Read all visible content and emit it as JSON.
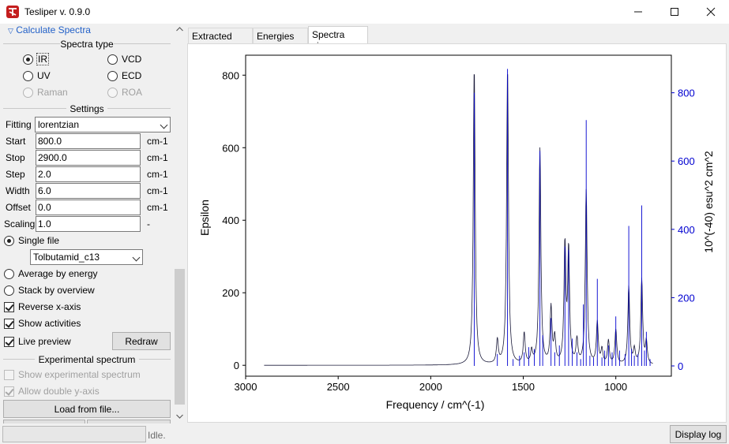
{
  "window": {
    "title": "Tesliper v. 0.9.0"
  },
  "left_panel": {
    "collapse_label": "Calculate Spectra",
    "spectra_type": {
      "title": "Spectra type",
      "options": [
        {
          "label": "IR",
          "checked": true,
          "disabled": false
        },
        {
          "label": "VCD",
          "checked": false,
          "disabled": false
        },
        {
          "label": "UV",
          "checked": false,
          "disabled": false
        },
        {
          "label": "ECD",
          "checked": false,
          "disabled": false
        },
        {
          "label": "Raman",
          "checked": false,
          "disabled": true
        },
        {
          "label": "ROA",
          "checked": false,
          "disabled": true
        }
      ]
    },
    "settings": {
      "title": "Settings",
      "fitting_label": "Fitting",
      "fitting_value": "lorentzian",
      "fields": [
        {
          "label": "Start",
          "value": "800.0",
          "unit": "cm-1"
        },
        {
          "label": "Stop",
          "value": "2900.0",
          "unit": "cm-1"
        },
        {
          "label": "Step",
          "value": "2.0",
          "unit": "cm-1"
        },
        {
          "label": "Width",
          "value": "6.0",
          "unit": "cm-1"
        },
        {
          "label": "Offset",
          "value": "0.0",
          "unit": "cm-1"
        },
        {
          "label": "Scaling",
          "value": "1.0",
          "unit": "-"
        }
      ]
    },
    "mode": {
      "single_file": "Single file",
      "single_file_value": "Tolbutamid_c13",
      "average_by_energy": "Average by energy",
      "stack_by_overview": "Stack by overview"
    },
    "checks": {
      "reverse_x_axis": "Reverse x-axis",
      "show_activities": "Show activities",
      "live_preview": "Live preview",
      "redraw": "Redraw"
    },
    "experimental": {
      "title": "Experimental spectrum",
      "show": "Show experimental spectrum",
      "double_y": "Allow double y-axis",
      "load_button": "Load from file..."
    }
  },
  "tabs": [
    {
      "label": "Extracted data"
    },
    {
      "label": "Energies list"
    },
    {
      "label": "Spectra view"
    }
  ],
  "status": {
    "text": "Idle.",
    "log_button": "Display log"
  },
  "colors": {
    "spectrum": "#1a1a3a",
    "activities": "#0000d0",
    "accent": "#2361c8"
  },
  "chart_data": {
    "type": "line",
    "xlabel": "Frequency / cm^(-1)",
    "ylabel": "Epsilon",
    "y2label": "10^(-40) esu^2 cm^2",
    "xlim": [
      3000,
      700
    ],
    "ylim": [
      -30,
      855
    ],
    "y2lim": [
      -30,
      910
    ],
    "x_reversed": true,
    "xticks": [
      "3000",
      "2500",
      "2000",
      "1500",
      "1000"
    ],
    "yticks": [
      "0",
      "200",
      "400",
      "600",
      "800"
    ],
    "y2ticks": [
      "0",
      "200",
      "400",
      "600",
      "800"
    ],
    "spectrum_baseline": 0,
    "peaks": [
      {
        "x": 1765,
        "y": 822
      },
      {
        "x": 1640,
        "y": 65
      },
      {
        "x": 1585,
        "y": 820
      },
      {
        "x": 1495,
        "y": 85
      },
      {
        "x": 1455,
        "y": 35
      },
      {
        "x": 1410,
        "y": 595
      },
      {
        "x": 1350,
        "y": 155
      },
      {
        "x": 1330,
        "y": 70
      },
      {
        "x": 1275,
        "y": 325
      },
      {
        "x": 1255,
        "y": 310
      },
      {
        "x": 1210,
        "y": 65
      },
      {
        "x": 1160,
        "y": 480
      },
      {
        "x": 1100,
        "y": 115
      },
      {
        "x": 1075,
        "y": 40
      },
      {
        "x": 1040,
        "y": 65
      },
      {
        "x": 1000,
        "y": 95
      },
      {
        "x": 930,
        "y": 215
      },
      {
        "x": 900,
        "y": 40
      },
      {
        "x": 860,
        "y": 235
      },
      {
        "x": 835,
        "y": 60
      }
    ],
    "activities": [
      {
        "x": 1765,
        "y": 800
      },
      {
        "x": 1640,
        "y": 35
      },
      {
        "x": 1585,
        "y": 870
      },
      {
        "x": 1555,
        "y": 20
      },
      {
        "x": 1520,
        "y": 30
      },
      {
        "x": 1495,
        "y": 40
      },
      {
        "x": 1470,
        "y": 55
      },
      {
        "x": 1440,
        "y": 50
      },
      {
        "x": 1410,
        "y": 630
      },
      {
        "x": 1395,
        "y": 90
      },
      {
        "x": 1350,
        "y": 140
      },
      {
        "x": 1330,
        "y": 40
      },
      {
        "x": 1305,
        "y": 60
      },
      {
        "x": 1275,
        "y": 350
      },
      {
        "x": 1255,
        "y": 340
      },
      {
        "x": 1235,
        "y": 80
      },
      {
        "x": 1210,
        "y": 40
      },
      {
        "x": 1190,
        "y": 20
      },
      {
        "x": 1175,
        "y": 180
      },
      {
        "x": 1160,
        "y": 720
      },
      {
        "x": 1140,
        "y": 30
      },
      {
        "x": 1120,
        "y": 25
      },
      {
        "x": 1100,
        "y": 255
      },
      {
        "x": 1075,
        "y": 25
      },
      {
        "x": 1060,
        "y": 45
      },
      {
        "x": 1040,
        "y": 60
      },
      {
        "x": 1020,
        "y": 40
      },
      {
        "x": 1000,
        "y": 145
      },
      {
        "x": 980,
        "y": 45
      },
      {
        "x": 950,
        "y": 35
      },
      {
        "x": 930,
        "y": 410
      },
      {
        "x": 915,
        "y": 50
      },
      {
        "x": 900,
        "y": 30
      },
      {
        "x": 880,
        "y": 35
      },
      {
        "x": 860,
        "y": 470
      },
      {
        "x": 845,
        "y": 45
      },
      {
        "x": 835,
        "y": 100
      },
      {
        "x": 815,
        "y": 20
      }
    ],
    "legend": "none",
    "grid": false
  }
}
